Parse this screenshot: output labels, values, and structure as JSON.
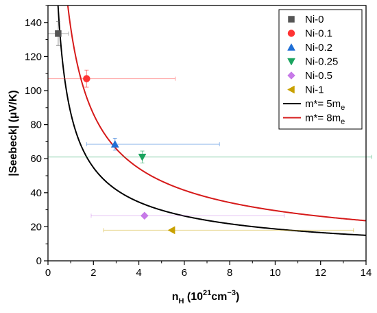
{
  "chart_data": {
    "type": "scatter",
    "xlabel": "n_H (10^21 cm^-3)",
    "xlabel_parts": {
      "main": "n",
      "sub": "H",
      "open": " (10",
      "sup1": "21",
      "mid": "cm",
      "sup2": "−3",
      "close": ")"
    },
    "ylabel": "|Seebeck| (μV/K)",
    "xlim": [
      0,
      14
    ],
    "ylim": [
      0,
      150
    ],
    "xticks": [
      0,
      2,
      4,
      6,
      8,
      10,
      12,
      14
    ],
    "yticks": [
      0,
      20,
      40,
      60,
      80,
      100,
      120,
      140
    ],
    "grid": false,
    "legend_position": "top-right",
    "series": [
      {
        "name": "Ni-0",
        "marker": "square",
        "color": "#555555",
        "x": 0.45,
        "y": 133.5,
        "xerr": [
          0.45,
          0.45
        ],
        "yerr": [
          7,
          7
        ]
      },
      {
        "name": "Ni-0.1",
        "marker": "circle",
        "color": "#ff3333",
        "x": 1.7,
        "y": 107,
        "xerr": [
          1.7,
          3.9
        ],
        "yerr": [
          5,
          5
        ]
      },
      {
        "name": "Ni-0.2",
        "marker": "triangle-up",
        "color": "#1f6fd6",
        "x": 2.95,
        "y": 68.5,
        "xerr": [
          1.25,
          4.6
        ],
        "yerr": [
          3.5,
          3.5
        ]
      },
      {
        "name": "Ni-0.25",
        "marker": "triangle-down",
        "color": "#1aa35e",
        "x": 4.15,
        "y": 61,
        "xerr": [
          4.15,
          10.1
        ],
        "yerr": [
          3.5,
          3.5
        ]
      },
      {
        "name": "Ni-0.5",
        "marker": "diamond",
        "color": "#c77ae8",
        "x": 4.25,
        "y": 26.5,
        "xerr": [
          2.35,
          6.15
        ],
        "yerr": [
          0,
          0
        ]
      },
      {
        "name": "Ni-1",
        "marker": "triangle-left",
        "color": "#c9a100",
        "x": 5.45,
        "y": 18,
        "xerr": [
          3.0,
          8.0
        ],
        "yerr": [
          0,
          0
        ]
      }
    ],
    "curves": [
      {
        "name": "m*= 5m_e",
        "label_main": "m*= 5m",
        "label_sub": "e",
        "color": "#000000",
        "coef": 87.0,
        "exponent": -0.6667
      },
      {
        "name": "m*= 8m_e",
        "label_main": "m*= 8m",
        "label_sub": "e",
        "color": "#d61a1a",
        "coef": 137.0,
        "exponent": -0.6667
      }
    ]
  }
}
